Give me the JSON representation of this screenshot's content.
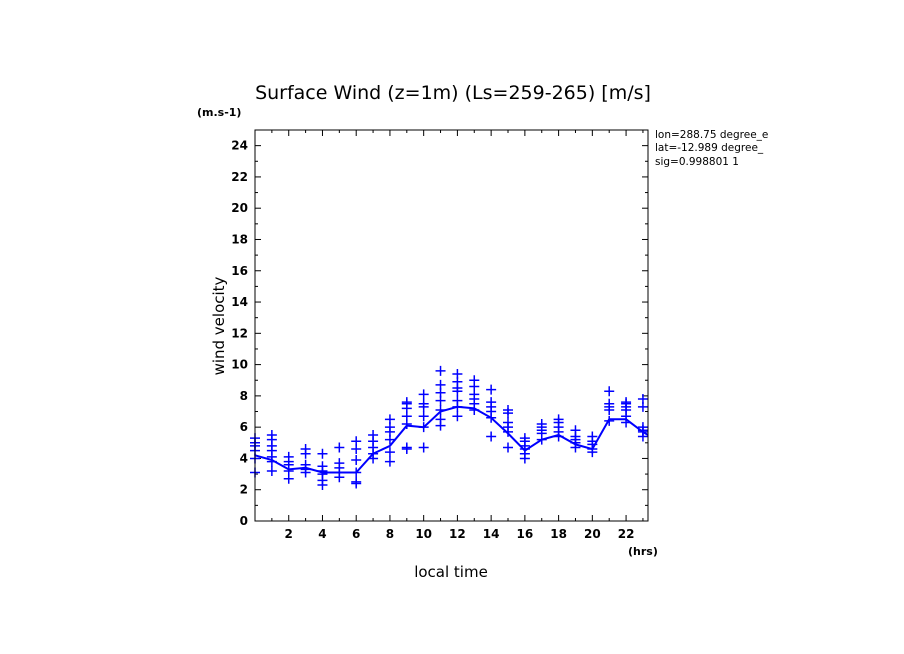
{
  "chart_data": {
    "type": "line",
    "title": "Surface Wind (z=1m) (Ls=259-265) [m/s]",
    "y_unit": "(m.s-1)",
    "x_unit": "(hrs)",
    "xlabel": "local time",
    "ylabel": "wind velocity",
    "xlim": [
      0,
      23.3
    ],
    "ylim": [
      0,
      25
    ],
    "x_ticks": [
      2,
      4,
      6,
      8,
      10,
      12,
      14,
      16,
      18,
      20,
      22
    ],
    "y_ticks": [
      0,
      2,
      4,
      6,
      8,
      10,
      12,
      14,
      16,
      18,
      20,
      22,
      24
    ],
    "info_lines": [
      "lon=288.75 degree_e",
      "lat=-12.989 degree_",
      "sig=0.998801 1"
    ],
    "colors": {
      "series": "#0000ff",
      "axes": "#000000"
    },
    "series": [
      {
        "kind": "mean-line",
        "x": [
          0.0,
          1.0,
          2.0,
          3.0,
          4.0,
          5.0,
          6.0,
          7.0,
          8.0,
          9.0,
          10.0,
          11.0,
          12.0,
          13.0,
          14.0,
          15.0,
          16.0,
          17.0,
          18.0,
          19.0,
          20.0,
          21.0,
          22.0,
          23.0,
          23.3
        ],
        "y": [
          4.2,
          3.9,
          3.3,
          3.4,
          3.1,
          3.1,
          3.1,
          4.3,
          4.8,
          6.1,
          6.0,
          7.0,
          7.3,
          7.2,
          6.6,
          5.6,
          4.5,
          5.2,
          5.5,
          4.9,
          4.6,
          6.5,
          6.5,
          5.7,
          5.5
        ]
      },
      {
        "kind": "samples",
        "points": [
          [
            0.0,
            3.1
          ],
          [
            0.0,
            4.0
          ],
          [
            0.0,
            4.5
          ],
          [
            0.0,
            4.8
          ],
          [
            0.0,
            5.0
          ],
          [
            0.0,
            5.3
          ],
          [
            1.0,
            3.2
          ],
          [
            1.0,
            3.8
          ],
          [
            1.0,
            4.1
          ],
          [
            1.0,
            4.5
          ],
          [
            1.0,
            4.8
          ],
          [
            1.0,
            5.2
          ],
          [
            1.0,
            5.5
          ],
          [
            2.0,
            2.7
          ],
          [
            2.0,
            3.2
          ],
          [
            2.0,
            3.6
          ],
          [
            2.0,
            3.8
          ],
          [
            2.0,
            4.1
          ],
          [
            3.0,
            3.1
          ],
          [
            3.0,
            3.3
          ],
          [
            3.0,
            3.6
          ],
          [
            3.0,
            4.3
          ],
          [
            3.0,
            4.6
          ],
          [
            4.0,
            2.3
          ],
          [
            4.0,
            2.6
          ],
          [
            4.0,
            3.0
          ],
          [
            4.0,
            3.2
          ],
          [
            4.0,
            3.5
          ],
          [
            4.0,
            4.3
          ],
          [
            5.0,
            2.8
          ],
          [
            5.0,
            3.1
          ],
          [
            5.0,
            3.4
          ],
          [
            5.0,
            3.7
          ],
          [
            5.0,
            4.7
          ],
          [
            6.0,
            2.4
          ],
          [
            6.0,
            2.5
          ],
          [
            6.0,
            3.1
          ],
          [
            6.0,
            3.9
          ],
          [
            6.0,
            4.6
          ],
          [
            6.0,
            5.1
          ],
          [
            7.0,
            4.0
          ],
          [
            7.0,
            4.3
          ],
          [
            7.0,
            4.7
          ],
          [
            7.0,
            5.1
          ],
          [
            7.0,
            5.5
          ],
          [
            8.0,
            3.8
          ],
          [
            8.0,
            4.4
          ],
          [
            8.0,
            5.2
          ],
          [
            8.0,
            5.7
          ],
          [
            8.0,
            6.0
          ],
          [
            8.0,
            6.5
          ],
          [
            9.0,
            4.6
          ],
          [
            9.0,
            4.7
          ],
          [
            9.0,
            6.2
          ],
          [
            9.0,
            6.7
          ],
          [
            9.0,
            7.2
          ],
          [
            9.0,
            7.5
          ],
          [
            9.0,
            7.6
          ],
          [
            10.0,
            4.7
          ],
          [
            10.0,
            6.0
          ],
          [
            10.0,
            6.7
          ],
          [
            10.0,
            7.3
          ],
          [
            10.0,
            7.5
          ],
          [
            10.0,
            8.1
          ],
          [
            11.0,
            6.1
          ],
          [
            11.0,
            6.5
          ],
          [
            11.0,
            7.1
          ],
          [
            11.0,
            7.7
          ],
          [
            11.0,
            8.2
          ],
          [
            11.0,
            8.7
          ],
          [
            11.0,
            9.6
          ],
          [
            12.0,
            6.7
          ],
          [
            12.0,
            7.3
          ],
          [
            12.0,
            7.7
          ],
          [
            12.0,
            8.3
          ],
          [
            12.0,
            8.5
          ],
          [
            12.0,
            8.9
          ],
          [
            12.0,
            9.4
          ],
          [
            13.0,
            7.1
          ],
          [
            13.0,
            7.5
          ],
          [
            13.0,
            7.8
          ],
          [
            13.0,
            8.1
          ],
          [
            13.0,
            8.6
          ],
          [
            13.0,
            9.0
          ],
          [
            14.0,
            5.4
          ],
          [
            14.0,
            6.6
          ],
          [
            14.0,
            7.0
          ],
          [
            14.0,
            7.3
          ],
          [
            14.0,
            7.6
          ],
          [
            14.0,
            8.4
          ],
          [
            15.0,
            4.7
          ],
          [
            15.0,
            5.7
          ],
          [
            15.0,
            6.0
          ],
          [
            15.0,
            6.3
          ],
          [
            15.0,
            6.9
          ],
          [
            15.0,
            7.1
          ],
          [
            16.0,
            4.0
          ],
          [
            16.0,
            4.3
          ],
          [
            16.0,
            4.6
          ],
          [
            16.0,
            4.8
          ],
          [
            16.0,
            5.1
          ],
          [
            16.0,
            5.3
          ],
          [
            17.0,
            5.2
          ],
          [
            17.0,
            5.6
          ],
          [
            17.0,
            5.8
          ],
          [
            17.0,
            6.0
          ],
          [
            17.0,
            6.2
          ],
          [
            18.0,
            5.4
          ],
          [
            18.0,
            5.7
          ],
          [
            18.0,
            6.0
          ],
          [
            18.0,
            6.3
          ],
          [
            18.0,
            6.5
          ],
          [
            19.0,
            4.7
          ],
          [
            19.0,
            5.0
          ],
          [
            19.0,
            5.2
          ],
          [
            19.0,
            5.4
          ],
          [
            19.0,
            5.8
          ],
          [
            20.0,
            4.4
          ],
          [
            20.0,
            4.6
          ],
          [
            20.0,
            4.9
          ],
          [
            20.0,
            5.1
          ],
          [
            20.0,
            5.4
          ],
          [
            21.0,
            6.4
          ],
          [
            21.0,
            7.1
          ],
          [
            21.0,
            7.3
          ],
          [
            21.0,
            7.5
          ],
          [
            21.0,
            8.3
          ],
          [
            22.0,
            6.3
          ],
          [
            22.0,
            6.7
          ],
          [
            22.0,
            7.1
          ],
          [
            22.0,
            7.3
          ],
          [
            22.0,
            7.5
          ],
          [
            22.0,
            7.6
          ],
          [
            23.0,
            5.4
          ],
          [
            23.0,
            5.7
          ],
          [
            23.0,
            5.8
          ],
          [
            23.0,
            6.0
          ],
          [
            23.0,
            7.3
          ],
          [
            23.0,
            7.8
          ]
        ]
      }
    ]
  }
}
